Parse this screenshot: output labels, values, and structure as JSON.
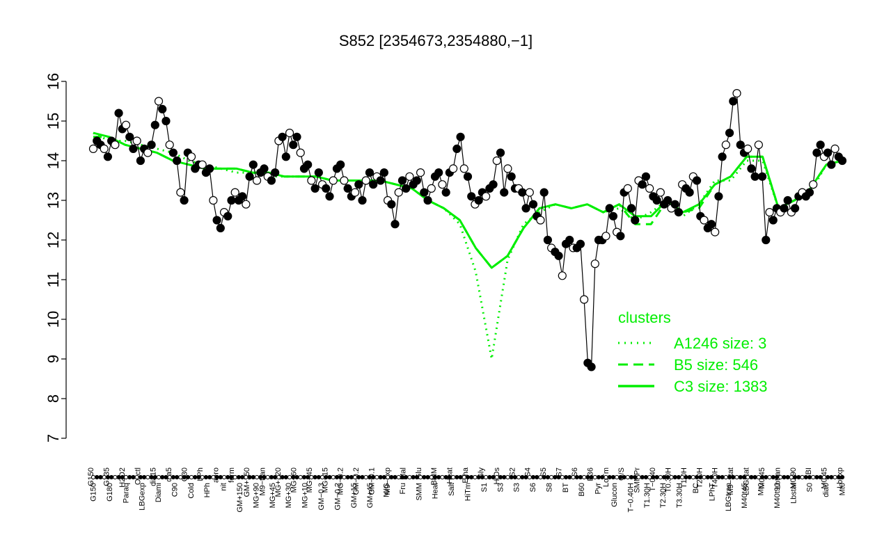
{
  "chart_data": {
    "type": "line",
    "title": "S852 [2354673,2354880,−1]",
    "xlabel": "",
    "ylabel": "",
    "ylim": [
      7,
      16
    ],
    "yticks": [
      7,
      8,
      9,
      10,
      11,
      12,
      13,
      14,
      15,
      16
    ],
    "grid": false,
    "colors": {
      "data": "#000000",
      "cluster": "#00ee00",
      "axis": "#000000"
    },
    "top_labels": [
      "G150",
      "G135",
      "H2O2",
      "Oxctl",
      "dia15",
      "dia5",
      "C30",
      "LPh",
      "aero",
      "ferm",
      "GM+150",
      "M9−tran",
      "MG+120",
      "MG+60",
      "MG+45",
      "MG+15",
      "MG−0.2",
      "GM−0.2",
      "GM−0.1",
      "M9−exp",
      "Mal",
      "Glu",
      "BMM",
      "Heat",
      "Etha",
      "Gly",
      "HiOs",
      "S2",
      "S4",
      "S5",
      "S7",
      "S6",
      "B36",
      "LoTm",
      "G/S",
      "SMMPr",
      "T−0.40",
      "T0.30H",
      "T1.0H",
      "T2.0H",
      "T4.0H",
      "M9−stat",
      "LBGstat",
      "M0t45",
      "Lbtran",
      "M0t90",
      "BI",
      "M0t45",
      "Lbexp"
    ],
    "bottom_labels": [
      "G150",
      "G180",
      "Paraq",
      "LBGexp",
      "Diami",
      "C90",
      "Cold",
      "HPh",
      "nit",
      "GM+150",
      "MG+90",
      "MG+45",
      "MG+30",
      "MG+10",
      "GM−0.3",
      "GM−0.2",
      "GM+15",
      "GM+45",
      "M/G",
      "Fru",
      "SMM",
      "Heat",
      "Salt",
      "HiTm",
      "S1",
      "S3",
      "S3",
      "S6",
      "S8",
      "BT",
      "B60",
      "Pyr",
      "Glucon",
      "T−0.40H",
      "T1.30H",
      "T2.30H",
      "T3.30H",
      "BC",
      "LPhT",
      "LBGtran",
      "M40t45",
      "Mt0",
      "M40t90",
      "Lbstat",
      "S0",
      "dia0",
      "Mt0"
    ],
    "series": [
      {
        "values": [
          14.3,
          14.5,
          14.4,
          14.3,
          14.1,
          14.5,
          14.4,
          15.2,
          14.8,
          14.9,
          14.6,
          14.3,
          14.5,
          14.0,
          14.3,
          14.2,
          14.4,
          14.9,
          15.5,
          15.3,
          15.0,
          14.4,
          14.2,
          14.0,
          13.2,
          13.0,
          14.2,
          14.1,
          13.8,
          13.9,
          13.9,
          13.7,
          13.8,
          13.0,
          12.5,
          12.3,
          12.7,
          12.6,
          13.0,
          13.2,
          13.0,
          13.1,
          12.9,
          13.6,
          13.9,
          13.5,
          13.7,
          13.8,
          13.6,
          13.5,
          13.7,
          14.5,
          14.6,
          14.1,
          14.7,
          14.4,
          14.6,
          14.2,
          13.8,
          13.9,
          13.5,
          13.3,
          13.7,
          13.4,
          13.3,
          13.1,
          13.5,
          13.8,
          13.9,
          13.5,
          13.3,
          13.1,
          13.2,
          13.4,
          13.0,
          13.5,
          13.7,
          13.4,
          13.6,
          13.5,
          13.7,
          13.0,
          12.9,
          12.4,
          13.2,
          13.5,
          13.3,
          13.6,
          13.4,
          13.5,
          13.7,
          13.2,
          13.0,
          13.3,
          13.6,
          13.7,
          13.4,
          13.2,
          13.7,
          13.8,
          14.3,
          14.6,
          13.8,
          13.6,
          13.1,
          12.9,
          13.0,
          13.2,
          13.1,
          13.3,
          13.4,
          14.0,
          14.2,
          13.2,
          13.8,
          13.6,
          13.3,
          13.3,
          13.2,
          12.8,
          13.2,
          12.9,
          12.6,
          12.5,
          13.2,
          12.0,
          11.8,
          11.7,
          11.6,
          11.1,
          11.9,
          12.0,
          11.8,
          11.8,
          11.9,
          10.5,
          8.9,
          8.8,
          11.4,
          12.0,
          12.0,
          12.1,
          12.8,
          12.6,
          12.2,
          12.1,
          13.2,
          13.3,
          12.8,
          12.5,
          13.5,
          13.4,
          13.6,
          13.3,
          13.1,
          13.0,
          13.2,
          12.9,
          13.0,
          12.8,
          12.9,
          12.7,
          13.4,
          13.3,
          13.2,
          13.6,
          13.5,
          12.6,
          12.5,
          12.3,
          12.4,
          12.2,
          13.1,
          14.1,
          14.4,
          14.7,
          15.5,
          15.7,
          14.4,
          14.2,
          14.3,
          13.8,
          13.6,
          14.4,
          13.6,
          12.0,
          12.7,
          12.5,
          12.8,
          12.7,
          12.8,
          13.0,
          12.7,
          12.8,
          13.1,
          13.2,
          13.1,
          13.2,
          13.4,
          14.2,
          14.4,
          14.1,
          14.2,
          13.9,
          14.3,
          14.1,
          14.0
        ]
      },
      {
        "name": "A1246 size: 3",
        "style": "dotted",
        "values": [
          14.7,
          14.5,
          14.5,
          14.4,
          14.3,
          14.2,
          14.0,
          13.9,
          13.8,
          13.7,
          13.7,
          13.6,
          13.6,
          13.6,
          13.6,
          13.5,
          13.5,
          13.5,
          13.5,
          13.4,
          13.3,
          13.0,
          12.8,
          12.4,
          11.2,
          9.0,
          11.5,
          12.4,
          12.7,
          12.9,
          12.8,
          12.9,
          12.7,
          12.8,
          12.5,
          12.7,
          13.0,
          12.6,
          12.9,
          13.5,
          13.5,
          14.0,
          14.0,
          12.8,
          13.0,
          13.2,
          13.9,
          14.0
        ]
      },
      {
        "name": "B5 size: 546",
        "style": "dashed",
        "values": [
          14.6,
          14.6,
          14.4,
          14.3,
          14.2,
          14.0,
          13.9,
          13.8,
          13.8,
          13.8,
          13.7,
          13.7,
          13.6,
          13.6,
          13.6,
          13.5,
          13.5,
          13.5,
          13.5,
          13.4,
          13.3,
          13.0,
          12.8,
          12.5,
          11.8,
          11.3,
          11.6,
          12.3,
          12.8,
          12.9,
          12.8,
          12.9,
          12.7,
          12.9,
          12.4,
          12.4,
          13.0,
          12.7,
          12.8,
          13.4,
          13.6,
          14.1,
          14.1,
          12.8,
          13.0,
          13.3,
          13.9,
          14.0
        ]
      },
      {
        "name": "C3 size: 1383",
        "style": "solid",
        "values": [
          14.7,
          14.6,
          14.4,
          14.3,
          14.2,
          14.0,
          13.9,
          13.8,
          13.8,
          13.8,
          13.7,
          13.7,
          13.6,
          13.6,
          13.6,
          13.5,
          13.5,
          13.5,
          13.5,
          13.4,
          13.3,
          13.0,
          12.8,
          12.5,
          11.8,
          11.3,
          11.6,
          12.3,
          12.8,
          12.9,
          12.8,
          12.9,
          12.7,
          12.9,
          12.6,
          12.6,
          13.0,
          12.7,
          12.9,
          13.4,
          13.6,
          14.1,
          14.1,
          12.8,
          13.0,
          13.3,
          13.9,
          14.0
        ]
      }
    ],
    "legend": {
      "title": "clusters",
      "placement": "bottom-right",
      "entries": [
        "A1246 size: 3",
        "B5 size: 546",
        "C3 size: 1383"
      ]
    }
  }
}
